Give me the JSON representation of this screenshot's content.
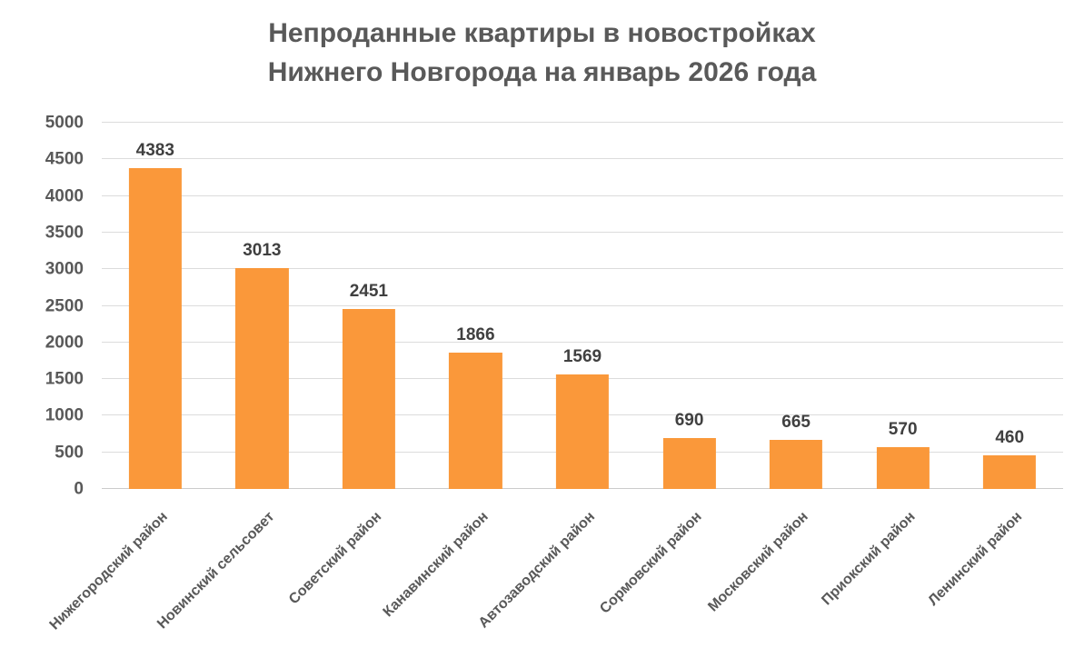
{
  "chart_data": {
    "type": "bar",
    "title": "Непроданные квартиры в новостройках Нижнего Новгорода на январь 2026 года",
    "title_lines": [
      "Непроданные квартиры в новостройках",
      "Нижнего Новгорода на январь 2026 года"
    ],
    "categories": [
      "Нижегородский район",
      "Новинский сельсовет",
      "Советский район",
      "Канавинский район",
      "Автозаводский район",
      "Сормовский район",
      "Московский район",
      "Приокский район",
      "Ленинский район"
    ],
    "values": [
      4383,
      3013,
      2451,
      1866,
      1569,
      690,
      665,
      570,
      460
    ],
    "xlabel": "",
    "ylabel": "",
    "ylim": [
      0,
      5000
    ],
    "yticks": [
      0,
      500,
      1000,
      1500,
      2000,
      2500,
      3000,
      3500,
      4000,
      4500,
      5000
    ],
    "grid": true,
    "legend_position": "none",
    "show_data_labels": true,
    "x_labels_rotation_deg": -45,
    "colors": {
      "bar": "#FA983A",
      "title": "#595959",
      "axis_text": "#595959",
      "data_label": "#404040",
      "gridline": "#DCDCDC",
      "background": "#FFFFFF"
    }
  }
}
